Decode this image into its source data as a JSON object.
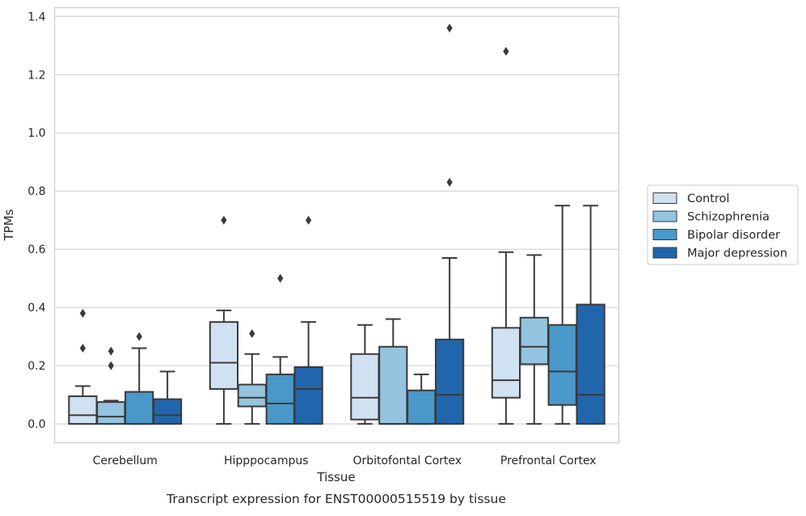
{
  "chart_data": {
    "type": "box",
    "caption": "Transcript expression for ENST00000515519 by tissue",
    "xlabel": "Tissue",
    "ylabel": "TPMs",
    "ylim": [
      -0.065,
      1.43
    ],
    "yticks": [
      0.0,
      0.2,
      0.4,
      0.6,
      0.8,
      1.0,
      1.2,
      1.4
    ],
    "ytick_labels": [
      "0.0",
      "0.2",
      "0.4",
      "0.6",
      "0.8",
      "1.0",
      "1.2",
      "1.4"
    ],
    "grid": "horizontal",
    "legend_position": "right",
    "categories": [
      "Cerebellum",
      "Hipppocampus",
      "Orbitofontal Cortex",
      "Prefrontal Cortex"
    ],
    "series": [
      {
        "name": "Control",
        "color": "#d0e1f2",
        "boxes": [
          {
            "whislo": 0.0,
            "q1": 0.0,
            "med": 0.03,
            "q3": 0.095,
            "whishi": 0.13,
            "fliers": [
              0.26,
              0.38
            ]
          },
          {
            "whislo": 0.0,
            "q1": 0.12,
            "med": 0.21,
            "q3": 0.35,
            "whishi": 0.39,
            "fliers": [
              0.7
            ]
          },
          {
            "whislo": 0.0,
            "q1": 0.015,
            "med": 0.09,
            "q3": 0.24,
            "whishi": 0.34,
            "fliers": []
          },
          {
            "whislo": 0.0,
            "q1": 0.09,
            "med": 0.15,
            "q3": 0.33,
            "whishi": 0.59,
            "fliers": [
              1.28
            ]
          }
        ]
      },
      {
        "name": "Schizophrenia",
        "color": "#94c4df",
        "boxes": [
          {
            "whislo": 0.0,
            "q1": 0.0,
            "med": 0.025,
            "q3": 0.075,
            "whishi": 0.08,
            "fliers": [
              0.2,
              0.25
            ]
          },
          {
            "whislo": 0.0,
            "q1": 0.06,
            "med": 0.09,
            "q3": 0.135,
            "whishi": 0.24,
            "fliers": [
              0.31
            ]
          },
          {
            "whislo": 0.0,
            "q1": 0.0,
            "med": 0.0,
            "q3": 0.265,
            "whishi": 0.36,
            "fliers": []
          },
          {
            "whislo": 0.0,
            "q1": 0.205,
            "med": 0.265,
            "q3": 0.365,
            "whishi": 0.58,
            "fliers": []
          }
        ]
      },
      {
        "name": "Bipolar disorder",
        "color": "#4a98c9",
        "boxes": [
          {
            "whislo": 0.0,
            "q1": 0.0,
            "med": 0.0,
            "q3": 0.11,
            "whishi": 0.26,
            "fliers": [
              0.3
            ]
          },
          {
            "whislo": 0.0,
            "q1": 0.0,
            "med": 0.07,
            "q3": 0.17,
            "whishi": 0.23,
            "fliers": [
              0.5
            ]
          },
          {
            "whislo": 0.0,
            "q1": 0.0,
            "med": 0.0,
            "q3": 0.115,
            "whishi": 0.17,
            "fliers": []
          },
          {
            "whislo": 0.0,
            "q1": 0.065,
            "med": 0.18,
            "q3": 0.34,
            "whishi": 0.75,
            "fliers": []
          }
        ]
      },
      {
        "name": "Major depression",
        "color": "#2166ac",
        "boxes": [
          {
            "whislo": 0.0,
            "q1": 0.0,
            "med": 0.03,
            "q3": 0.085,
            "whishi": 0.18,
            "fliers": []
          },
          {
            "whislo": 0.0,
            "q1": 0.0,
            "med": 0.12,
            "q3": 0.195,
            "whishi": 0.35,
            "fliers": [
              0.7
            ]
          },
          {
            "whislo": 0.0,
            "q1": 0.0,
            "med": 0.1,
            "q3": 0.29,
            "whishi": 0.57,
            "fliers": [
              0.83,
              1.36
            ]
          },
          {
            "whislo": 0.0,
            "q1": 0.0,
            "med": 0.1,
            "q3": 0.41,
            "whishi": 0.75,
            "fliers": []
          }
        ]
      }
    ]
  }
}
